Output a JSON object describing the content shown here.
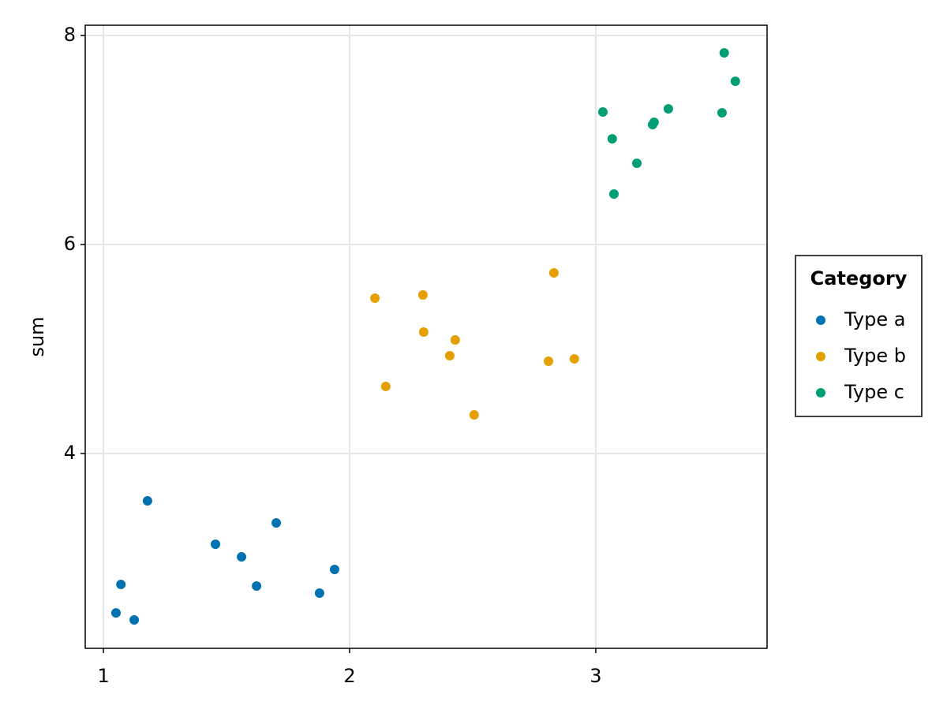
{
  "chart_data": {
    "type": "scatter",
    "ylabel": "sum",
    "xlim": [
      0.926,
      3.696
    ],
    "ylim": [
      2.136,
      8.098
    ],
    "xticks": [
      1,
      2,
      3
    ],
    "yticks": [
      4,
      6,
      8
    ],
    "grid": true,
    "legend_title": "Category",
    "legend": "right",
    "series": [
      {
        "name": "Type a",
        "color": "#0072b2",
        "x": [
          1.051,
          1.125,
          1.071,
          1.179,
          1.455,
          1.561,
          1.622,
          1.702,
          1.878,
          1.939
        ],
        "values": [
          2.475,
          2.408,
          2.747,
          3.547,
          3.132,
          3.011,
          2.732,
          3.336,
          2.664,
          2.891
        ]
      },
      {
        "name": "Type b",
        "color": "#e69f00",
        "x": [
          2.103,
          2.147,
          2.298,
          2.301,
          2.429,
          2.407,
          2.506,
          2.808,
          2.83,
          2.913
        ],
        "values": [
          5.487,
          4.642,
          5.517,
          5.162,
          5.087,
          4.936,
          4.37,
          4.883,
          5.728,
          4.906
        ]
      },
      {
        "name": "Type c",
        "color": "#009e73",
        "x": [
          3.029,
          3.067,
          3.074,
          3.167,
          3.231,
          3.237,
          3.295,
          3.513,
          3.522,
          3.567
        ],
        "values": [
          7.268,
          7.011,
          6.483,
          6.777,
          7.147,
          7.17,
          7.298,
          7.26,
          7.834,
          7.562
        ]
      }
    ]
  }
}
